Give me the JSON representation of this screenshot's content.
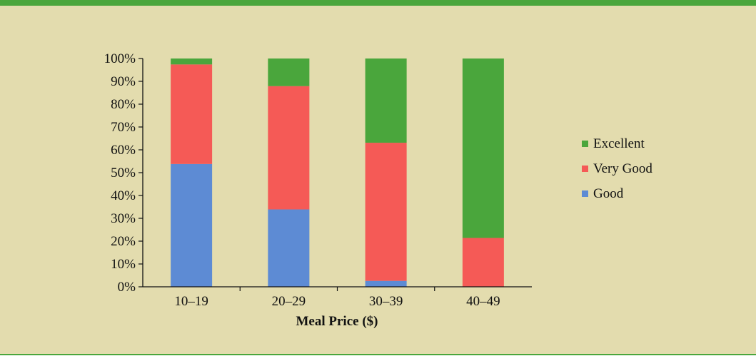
{
  "chart_data": {
    "type": "bar",
    "stacked": true,
    "categories": [
      "10–19",
      "20–29",
      "30–39",
      "40–49"
    ],
    "series": [
      {
        "name": "Good",
        "color": "#5d8bd4",
        "values": [
          53.8,
          33.9,
          2.6,
          0.0
        ]
      },
      {
        "name": "Very Good",
        "color": "#f55a56",
        "values": [
          43.6,
          54.0,
          60.5,
          21.4
        ]
      },
      {
        "name": "Excellent",
        "color": "#4aa63c",
        "values": [
          2.6,
          12.1,
          36.9,
          78.6
        ]
      }
    ],
    "xlabel": "Meal Price ($)",
    "ylabel": "",
    "ylim": [
      0,
      100
    ],
    "yticks": [
      "0%",
      "10%",
      "20%",
      "30%",
      "40%",
      "50%",
      "60%",
      "70%",
      "80%",
      "90%",
      "100%"
    ],
    "legend_position": "right",
    "legend_order": [
      "Excellent",
      "Very Good",
      "Good"
    ],
    "grid": false
  }
}
